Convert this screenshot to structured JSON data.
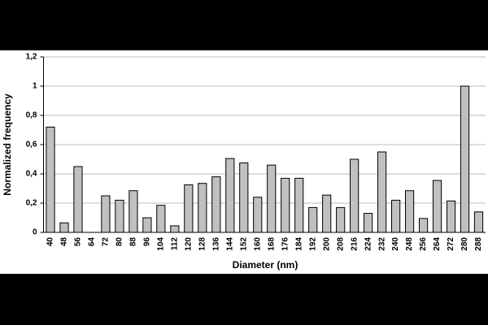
{
  "chart_data": {
    "type": "bar",
    "x_label": "Diameter (nm)",
    "y_label": "Normalized frequency",
    "categories": [
      "40",
      "48",
      "56",
      "64",
      "72",
      "80",
      "88",
      "96",
      "104",
      "112",
      "120",
      "128",
      "136",
      "144",
      "152",
      "160",
      "168",
      "176",
      "184",
      "192",
      "200",
      "208",
      "216",
      "224",
      "232",
      "240",
      "248",
      "256",
      "264",
      "272",
      "280",
      "288"
    ],
    "values": [
      0.72,
      0.065,
      0.45,
      0,
      0.25,
      0.22,
      0.285,
      0.1,
      0.185,
      0.045,
      0.325,
      0.335,
      0.38,
      0.505,
      0.475,
      0.24,
      0.46,
      0.37,
      0.37,
      0.17,
      0.255,
      0.17,
      0.5,
      0.13,
      0.55,
      0.22,
      0.285,
      0.095,
      0.355,
      0.215,
      1.0,
      0.14
    ],
    "color": "#c0c0c0",
    "ylim": [
      0,
      1.2
    ],
    "yticks": [
      0,
      {
        "value": 0.2,
        "label": "0,2"
      },
      {
        "value": 0.4,
        "label": "0,4"
      },
      {
        "value": 0.6,
        "label": "0,6"
      },
      {
        "value": 0.8,
        "label": "0,8"
      },
      1,
      {
        "value": 1.2,
        "label": "1,2"
      }
    ],
    "grid": true
  }
}
